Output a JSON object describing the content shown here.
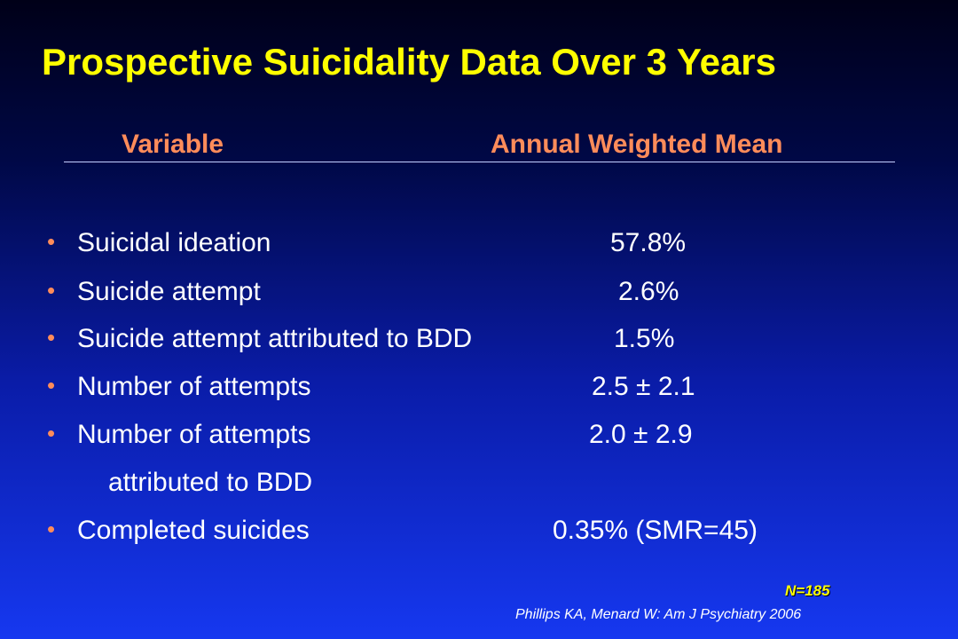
{
  "title": "Prospective Suicidality Data Over 3 Years",
  "headers": {
    "variable": "Variable",
    "mean": "Annual Weighted Mean"
  },
  "rows": [
    {
      "label": "Suicidal ideation",
      "value": "57.8%"
    },
    {
      "label": "Suicide attempt",
      "value": "2.6%"
    },
    {
      "label": "Suicide attempt attributed to BDD",
      "value": "1.5%"
    },
    {
      "label": "Number of attempts",
      "value": "2.5 ± 2.1"
    },
    {
      "label": "Number of attempts",
      "value": "2.0 ± 2.9",
      "continuation": "attributed to BDD"
    },
    {
      "label": "Completed suicides",
      "value": "0.35% (SMR=45)"
    }
  ],
  "footer": {
    "n": "N=185",
    "citation": "Phillips KA, Menard W: Am J Psychiatry 2006"
  },
  "colors": {
    "title": "#ffff00",
    "header": "#ff8c5a",
    "bullet": "#ff8c5a",
    "text": "#ffffff",
    "background_top": "#000018",
    "background_bottom": "#1638f0"
  }
}
